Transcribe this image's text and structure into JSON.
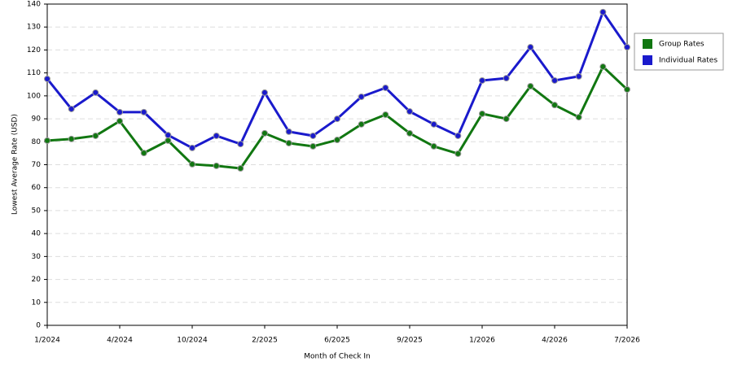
{
  "chart_data": {
    "type": "line",
    "x_label": "Month of Check In",
    "y_label": "Lowest Average Rate (USD)",
    "categories": [
      "1/2024",
      null,
      null,
      "4/2024",
      null,
      null,
      "10/2024",
      null,
      null,
      "2/2025",
      null,
      null,
      "6/2025",
      null,
      null,
      "9/2025",
      null,
      null,
      "1/2026",
      null,
      null,
      "4/2026",
      null,
      null,
      "7/2026"
    ],
    "series": [
      {
        "name": "Group Rates",
        "color": "#117711",
        "values": [
          80.5,
          81.2,
          82.6,
          89,
          75.1,
          80.5,
          70.2,
          69.5,
          68.4,
          83.7,
          79.4,
          78,
          80.8,
          87.6,
          91.8,
          83.7,
          78,
          74.8,
          92.2,
          90,
          104.2,
          96,
          90.7,
          112.7,
          102.8
        ]
      },
      {
        "name": "Individual Rates",
        "color": "#1a1acc",
        "values": [
          107.4,
          94.3,
          101.4,
          92.9,
          92.9,
          82.9,
          77.3,
          82.6,
          79,
          101.4,
          84.4,
          82.6,
          90,
          99.6,
          103.5,
          93.2,
          87.6,
          82.6,
          106.7,
          107.7,
          121.2,
          106.7,
          108.5,
          136.5,
          121.2
        ]
      }
    ],
    "ylim": [
      0,
      140
    ],
    "yticks": [
      0,
      10,
      20,
      30,
      40,
      50,
      60,
      70,
      80,
      90,
      100,
      110,
      120,
      130,
      140
    ],
    "grid": true,
    "legend": "right"
  }
}
